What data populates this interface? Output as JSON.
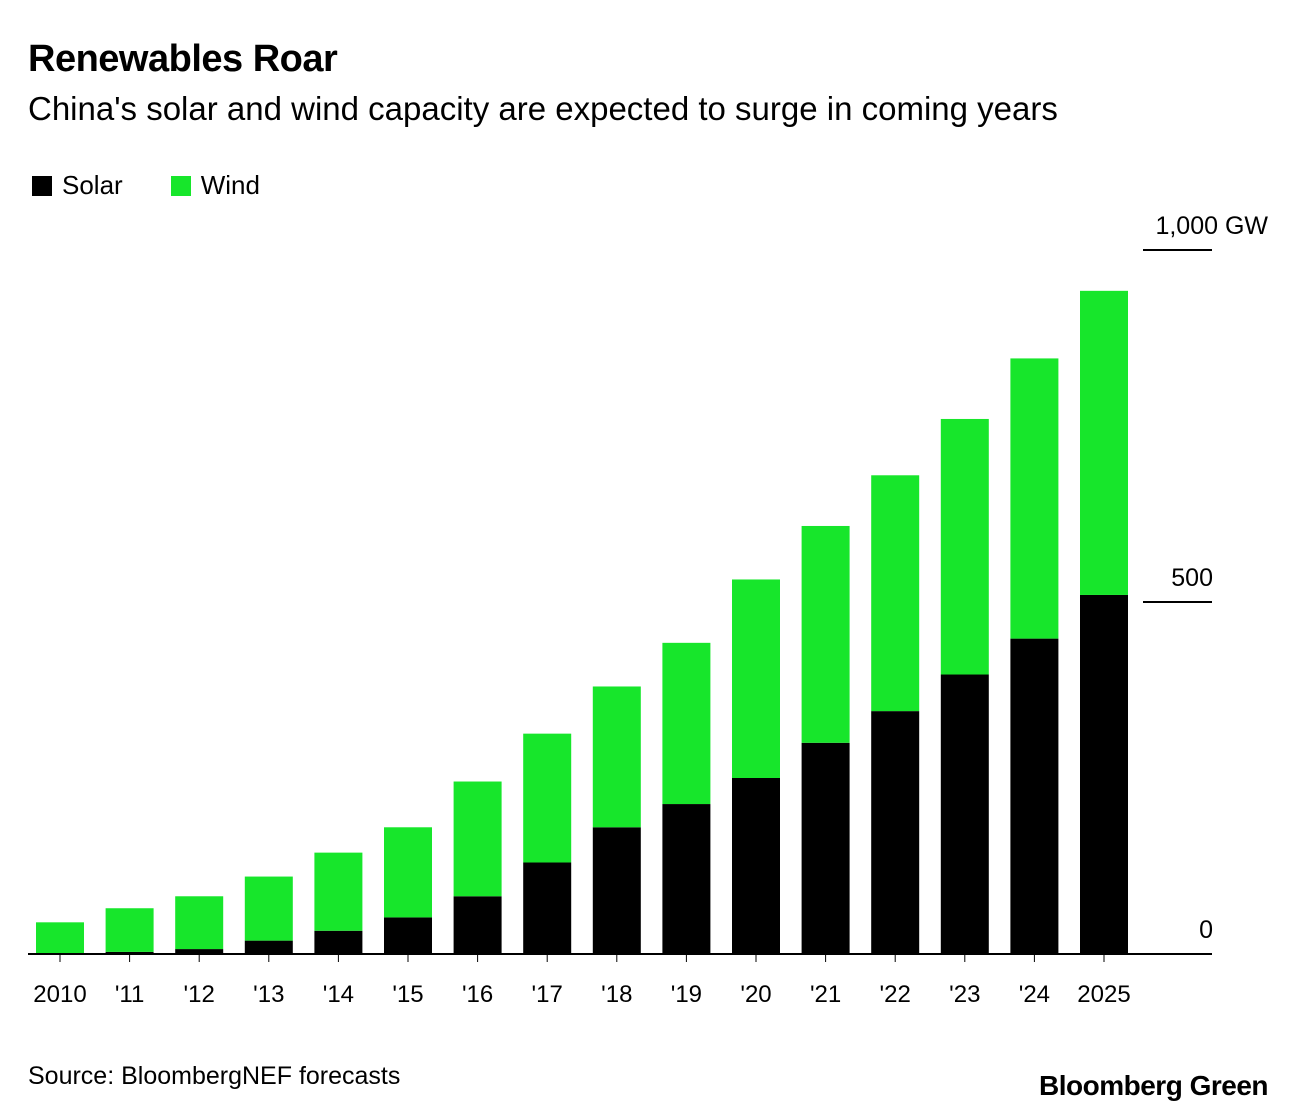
{
  "title": "Renewables Roar",
  "subtitle": "China's solar and wind capacity are expected to surge in coming years",
  "colors": {
    "solar": "#000000",
    "wind": "#17e62b"
  },
  "chart_data": {
    "type": "bar",
    "stacked": true,
    "categories": [
      "2010",
      "'11",
      "'12",
      "'13",
      "'14",
      "'15",
      "'16",
      "'17",
      "'18",
      "'19",
      "'20",
      "'21",
      "'22",
      "'23",
      "'24",
      "2025"
    ],
    "series": [
      {
        "name": "Solar",
        "values": [
          1,
          3,
          7,
          19,
          33,
          52,
          82,
          130,
          180,
          213,
          250,
          300,
          345,
          397,
          448,
          510
        ]
      },
      {
        "name": "Wind",
        "values": [
          44,
          62,
          75,
          91,
          111,
          128,
          163,
          183,
          200,
          229,
          282,
          308,
          335,
          363,
          398,
          432
        ]
      }
    ],
    "y_ticks": [
      {
        "value": 1000,
        "label": "1,000 GW"
      },
      {
        "value": 500,
        "label": "500"
      },
      {
        "value": 0,
        "label": "0"
      }
    ],
    "ylim": [
      0,
      1000
    ],
    "legend_position": "top-left"
  },
  "source": "Source: BloombergNEF forecasts",
  "brand": "Bloomberg Green"
}
